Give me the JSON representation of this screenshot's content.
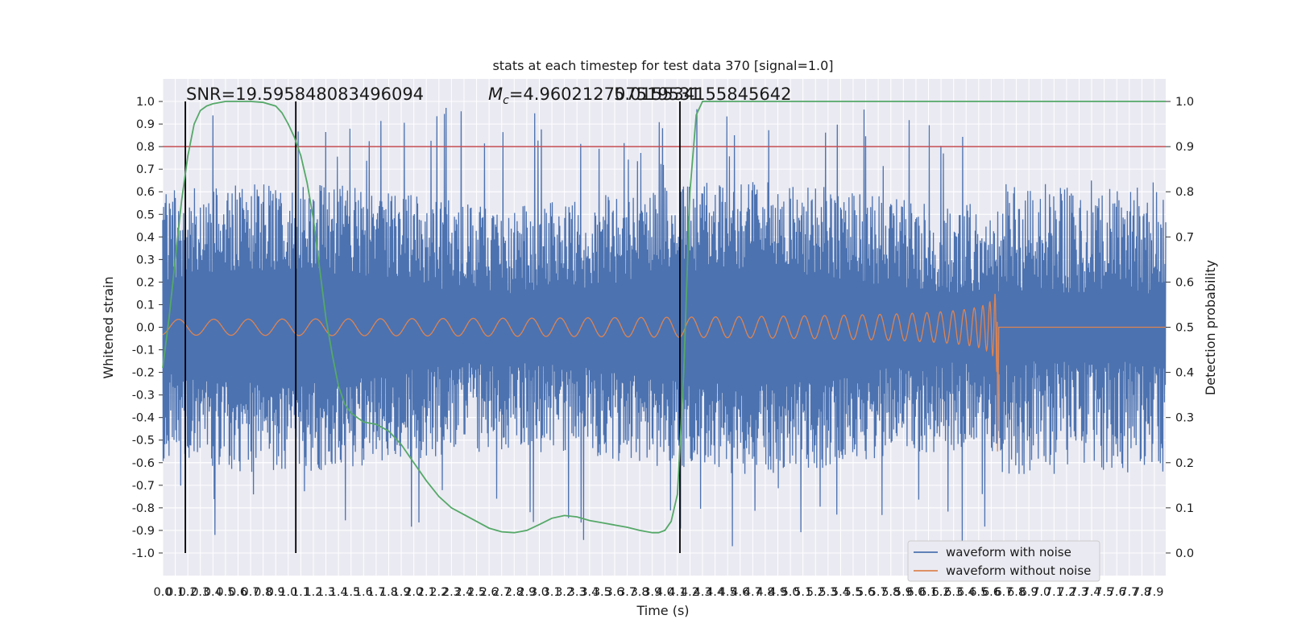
{
  "chart_data": {
    "type": "line",
    "title": "stats at each timestep for test data 370 [signal=1.0]",
    "xlabel": "Time (s)",
    "ylabel": "Whitened strain",
    "y2label": "Detection probability",
    "xlim": [
      0.0,
      7.99
    ],
    "ylim": [
      -1.1,
      1.1
    ],
    "y2lim": [
      -0.05,
      1.05
    ],
    "x_ticks": [
      "0.0",
      "0.1",
      "0.2",
      "0.3",
      "0.4",
      "0.5",
      "0.6",
      "0.7",
      "0.8",
      "0.9",
      "1.0",
      "1.1",
      "1.2",
      "1.3",
      "1.4",
      "1.5",
      "1.6",
      "1.7",
      "1.8",
      "1.9",
      "2.0",
      "2.1",
      "2.2",
      "2.3",
      "2.4",
      "2.5",
      "2.6",
      "2.7",
      "2.8",
      "2.9",
      "3.0",
      "3.1",
      "3.2",
      "3.3",
      "3.4",
      "3.5",
      "3.6",
      "3.7",
      "3.8",
      "3.9",
      "4.0",
      "4.1",
      "4.2",
      "4.3",
      "4.4",
      "4.5",
      "4.6",
      "4.7",
      "4.8",
      "4.9",
      "5.0",
      "5.1",
      "5.2",
      "5.3",
      "5.4",
      "5.5",
      "5.6",
      "5.7",
      "5.8",
      "5.9",
      "6.0",
      "6.1",
      "6.2",
      "6.3",
      "6.4",
      "6.5",
      "6.6",
      "6.7",
      "6.8",
      "6.9",
      "7.0",
      "7.1",
      "7.2",
      "7.3",
      "7.4",
      "7.5",
      "7.6",
      "7.7",
      "7.8",
      "7.9"
    ],
    "y_ticks": [
      "1.0",
      "0.9",
      "0.8",
      "0.7",
      "0.6",
      "0.5",
      "0.4",
      "0.3",
      "0.2",
      "0.1",
      "0.0",
      "-0.1",
      "-0.2",
      "-0.3",
      "-0.4",
      "-0.5",
      "-0.6",
      "-0.7",
      "-0.8",
      "-0.9",
      "-1.0"
    ],
    "y2_ticks": [
      "1.0",
      "0.9",
      "0.8",
      "0.7",
      "0.6",
      "0.5",
      "0.4",
      "0.3",
      "0.2",
      "0.1",
      "0.0"
    ],
    "grid": true,
    "legend_placement": "lower-right",
    "colors": {
      "noise": "#4c72b0",
      "clean": "#dd8452",
      "probability": "#55a868",
      "threshold": "#c44e52",
      "marker": "#000000",
      "background": "#eaeaf2",
      "grid": "#ffffff"
    },
    "annotations": {
      "snr": "SNR=19.595848083496094",
      "mc_prefix": "=4.960212707519531",
      "mc_symbol": "M",
      "mc_sub": "c",
      "overlap": "5.015534155845642"
    },
    "series": [
      {
        "name": "waveform with noise",
        "envelope": "noise amplitude approx ±0.2 to ±0.6 with peaks near ±1.0"
      },
      {
        "name": "waveform without noise",
        "chirp_start": 0.0,
        "merger_time": 6.65,
        "amplitude_start": 0.035,
        "amplitude_peak": 0.43,
        "amplitude_min": -0.55
      }
    ],
    "detection_probability": {
      "x": [
        0.0,
        0.05,
        0.1,
        0.15,
        0.2,
        0.25,
        0.3,
        0.35,
        0.4,
        0.5,
        0.6,
        0.7,
        0.8,
        0.9,
        0.95,
        1.0,
        1.05,
        1.1,
        1.15,
        1.2,
        1.25,
        1.3,
        1.35,
        1.4,
        1.45,
        1.5,
        1.6,
        1.7,
        1.8,
        1.9,
        2.0,
        2.1,
        2.2,
        2.3,
        2.4,
        2.5,
        2.6,
        2.7,
        2.8,
        2.9,
        3.0,
        3.1,
        3.2,
        3.3,
        3.4,
        3.5,
        3.6,
        3.7,
        3.8,
        3.9,
        3.95,
        4.0,
        4.05,
        4.1,
        4.15,
        4.2,
        4.25,
        4.3,
        4.4,
        4.5,
        5.0,
        6.0,
        7.0,
        7.99
      ],
      "y": [
        0.41,
        0.52,
        0.65,
        0.78,
        0.88,
        0.95,
        0.98,
        0.99,
        0.995,
        1.0,
        1.0,
        1.0,
        0.998,
        0.99,
        0.975,
        0.95,
        0.92,
        0.88,
        0.82,
        0.74,
        0.63,
        0.52,
        0.44,
        0.37,
        0.33,
        0.31,
        0.29,
        0.285,
        0.27,
        0.24,
        0.2,
        0.16,
        0.125,
        0.1,
        0.085,
        0.07,
        0.055,
        0.047,
        0.045,
        0.05,
        0.063,
        0.077,
        0.083,
        0.08,
        0.072,
        0.067,
        0.062,
        0.057,
        0.05,
        0.045,
        0.045,
        0.05,
        0.07,
        0.13,
        0.4,
        0.8,
        0.97,
        1.0,
        1.0,
        1.0,
        1.0,
        1.0,
        1.0,
        1.0
      ]
    },
    "threshold": 0.9,
    "marker_lines": [
      0.18,
      1.06,
      4.12
    ],
    "legend": [
      "waveform with noise",
      "waveform without noise"
    ]
  }
}
